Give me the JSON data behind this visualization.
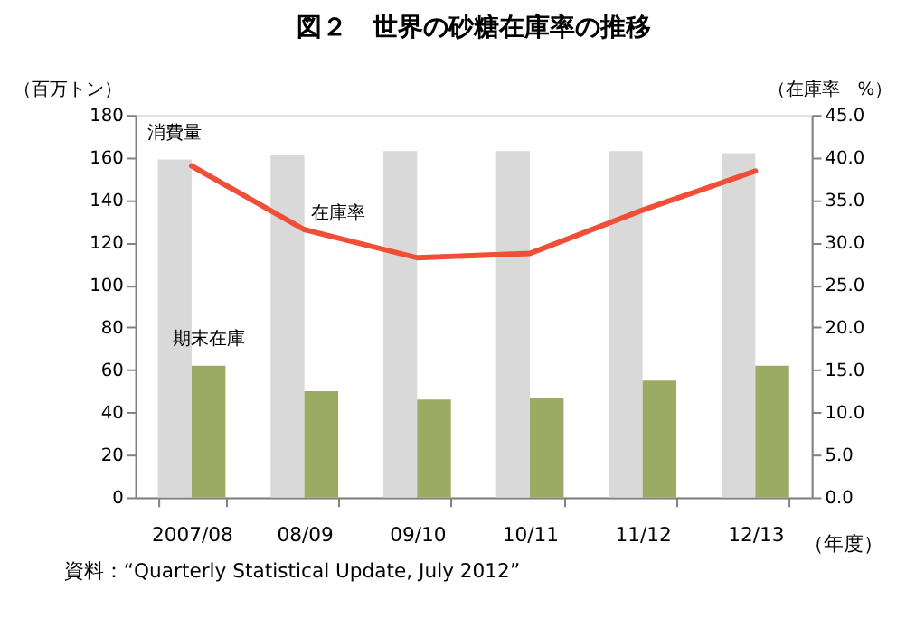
{
  "chart_data": {
    "type": "bar",
    "title": "図２　世界の砂糖在庫率の推移",
    "categories": [
      "2007/08",
      "08/09",
      "09/10",
      "10/11",
      "11/12",
      "12/13"
    ],
    "series": [
      {
        "name": "消費量",
        "color": "#d9d9d9",
        "values": [
          159,
          161,
          163,
          163,
          163,
          162
        ]
      },
      {
        "name": "期末在庫",
        "color": "#9cab64",
        "values": [
          62,
          50,
          46,
          47,
          55,
          62
        ]
      },
      {
        "name": "在庫率",
        "type": "line",
        "axis": "y2",
        "color": "#f04e37",
        "values": [
          39.0,
          31.5,
          28.2,
          28.7,
          33.8,
          38.4
        ]
      }
    ],
    "xlabel": "（年度）",
    "ylabel": "（百万トン）",
    "y2label": "（在庫率　%）",
    "ylim": [
      0,
      180
    ],
    "yticks": [
      0,
      20,
      40,
      60,
      80,
      100,
      120,
      140,
      160,
      180
    ],
    "y2lim": [
      0,
      45
    ],
    "y2ticks": [
      {
        "value": 0,
        "label": "0.0"
      },
      {
        "value": 5,
        "label": "5.0"
      },
      {
        "value": 10,
        "label": "10.0"
      },
      {
        "value": 15,
        "label": "15.0"
      },
      {
        "value": 20,
        "label": "20.0"
      },
      {
        "value": 25,
        "label": "25.0"
      },
      {
        "value": 30,
        "label": "30.0"
      },
      {
        "value": 35,
        "label": "35.0"
      },
      {
        "value": 40,
        "label": "40.0"
      },
      {
        "value": 45,
        "label": "45.0"
      }
    ],
    "grid": false,
    "legend": false,
    "annotations": [
      "資料：“Quarterly Statistical Update, July 2012”"
    ]
  }
}
